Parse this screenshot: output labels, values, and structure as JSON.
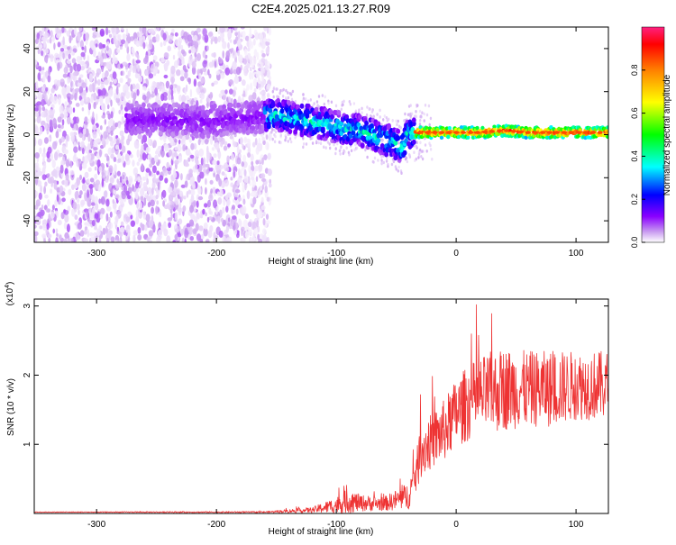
{
  "title": "C2E4.2025.021.13.27.R09",
  "chart_data": [
    {
      "type": "heatmap",
      "name": "spectrogram",
      "xlabel": "Height of straight line (km)",
      "ylabel": "Frequency (Hz)",
      "xlim": [
        -352,
        127
      ],
      "ylim": [
        -50,
        50
      ],
      "xticks": [
        -300,
        -200,
        -100,
        0,
        100
      ],
      "xtick_labels": [
        "-300",
        "-200",
        "-100",
        "0",
        "100"
      ],
      "yticks": [
        -40,
        -20,
        0,
        20,
        40
      ],
      "ytick_labels": [
        "-40",
        "-20",
        "0",
        "20",
        "40"
      ],
      "ridge": {
        "x": [
          -270,
          -230,
          -210,
          -190,
          -170,
          -150,
          -130,
          -110,
          -95,
          -80,
          -70,
          -60,
          -50,
          -45,
          -40,
          -30,
          -20,
          -10,
          0,
          20,
          40,
          60,
          80,
          100,
          127
        ],
        "frequency": [
          7,
          7,
          6,
          7,
          8,
          9,
          7,
          5,
          3,
          2,
          0,
          -2,
          -4,
          -6,
          1,
          1,
          1,
          1,
          1,
          1,
          2,
          1,
          1,
          1,
          1
        ]
      },
      "noise_region_x": [
        -352,
        -155
      ],
      "colorbar": {
        "label": "Normalized spectral amplitude",
        "range": [
          0,
          1
        ],
        "ticks": [
          0.0,
          0.2,
          0.4,
          0.6,
          0.8
        ],
        "tick_labels": [
          "0.0",
          "0.2",
          "0.4",
          "0.6",
          "0.8"
        ],
        "colors": [
          "#ffffff",
          "#c89af0",
          "#8a00ff",
          "#0000ff",
          "#00ffff",
          "#00ff00",
          "#ffff00",
          "#ff8000",
          "#ff0000"
        ]
      }
    },
    {
      "type": "line",
      "name": "snr",
      "xlabel": "Height of straight line (km)",
      "ylabel": "SNR (10 * v/v)",
      "scale_label": "(x10",
      "scale_exponent": "4",
      "scale_close": ")",
      "xlim": [
        -352,
        127
      ],
      "ylim": [
        0,
        3.1
      ],
      "xticks": [
        -300,
        -200,
        -100,
        0,
        100
      ],
      "xtick_labels": [
        "-300",
        "-200",
        "-100",
        "0",
        "100"
      ],
      "yticks": [
        1,
        2,
        3
      ],
      "ytick_labels": [
        "1",
        "2",
        "3"
      ],
      "color": "#ee3333",
      "envelope": {
        "x": [
          -352,
          -160,
          -120,
          -100,
          -90,
          -80,
          -60,
          -40,
          -33,
          -30,
          -20,
          -10,
          0,
          10,
          20,
          30,
          40,
          60,
          80,
          100,
          127
        ],
        "mean": [
          0.02,
          0.02,
          0.05,
          0.12,
          0.18,
          0.15,
          0.14,
          0.25,
          0.6,
          0.9,
          1.05,
          1.2,
          1.45,
          1.6,
          1.7,
          1.75,
          1.8,
          1.8,
          1.8,
          1.85,
          1.85
        ],
        "spread": [
          0.005,
          0.01,
          0.04,
          0.12,
          0.18,
          0.12,
          0.1,
          0.2,
          0.3,
          0.4,
          0.4,
          0.45,
          0.5,
          0.55,
          0.55,
          0.6,
          0.6,
          0.55,
          0.55,
          0.5,
          0.5
        ]
      }
    }
  ]
}
